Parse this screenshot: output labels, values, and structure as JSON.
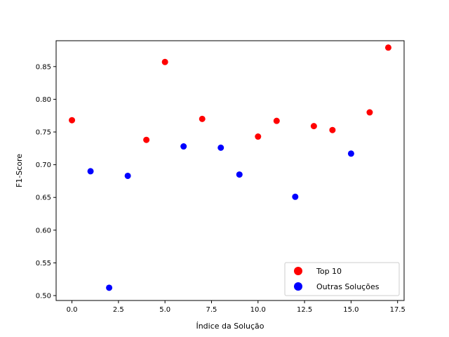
{
  "chart_data": {
    "type": "scatter",
    "title": "",
    "xlabel": "Índice da Solução",
    "ylabel": "F1-Score",
    "xlim": [
      -0.85,
      17.85
    ],
    "ylim": [
      0.4925,
      0.8895
    ],
    "xticks": [
      0.0,
      2.5,
      5.0,
      7.5,
      10.0,
      12.5,
      15.0,
      17.5
    ],
    "xtick_labels": [
      "0.0",
      "2.5",
      "5.0",
      "7.5",
      "10.0",
      "12.5",
      "15.0",
      "17.5"
    ],
    "yticks": [
      0.5,
      0.55,
      0.6,
      0.65,
      0.7,
      0.75,
      0.8,
      0.85
    ],
    "ytick_labels": [
      "0.50",
      "0.55",
      "0.60",
      "0.65",
      "0.70",
      "0.75",
      "0.80",
      "0.85"
    ],
    "grid": false,
    "legend_position": "lower-right",
    "series": [
      {
        "name": "Top 10",
        "color": "#ff0000",
        "x": [
          0,
          4,
          5,
          7,
          10,
          11,
          13,
          14,
          16,
          17
        ],
        "y": [
          0.768,
          0.738,
          0.857,
          0.77,
          0.743,
          0.767,
          0.759,
          0.753,
          0.78,
          0.879
        ]
      },
      {
        "name": "Outras Soluções",
        "color": "#0000ff",
        "x": [
          1,
          2,
          3,
          6,
          8,
          9,
          12,
          15
        ],
        "y": [
          0.69,
          0.512,
          0.683,
          0.728,
          0.726,
          0.685,
          0.651,
          0.717
        ]
      }
    ]
  }
}
